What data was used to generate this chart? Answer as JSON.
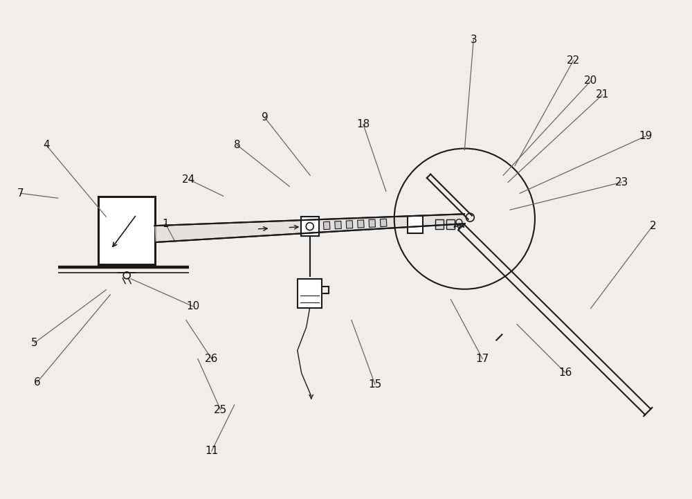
{
  "bg_color": "#f0eeec",
  "line_color": "#1a1a1a",
  "ann_color": "#666666",
  "label_color": "#111111",
  "fig_width": 10.0,
  "fig_height": 7.21,
  "dpi": 100,
  "annotations": [
    [
      "3",
      [
        6.85,
        6.65
      ],
      [
        6.72,
        5.05
      ]
    ],
    [
      "22",
      [
        8.3,
        6.35
      ],
      [
        7.45,
        4.82
      ]
    ],
    [
      "20",
      [
        8.55,
        6.05
      ],
      [
        7.28,
        4.68
      ]
    ],
    [
      "21",
      [
        8.72,
        5.85
      ],
      [
        7.35,
        4.58
      ]
    ],
    [
      "19",
      [
        9.35,
        5.25
      ],
      [
        7.52,
        4.42
      ]
    ],
    [
      "23",
      [
        9.0,
        4.58
      ],
      [
        7.38,
        4.18
      ]
    ],
    [
      "2",
      [
        9.45,
        3.95
      ],
      [
        8.55,
        2.75
      ]
    ],
    [
      "18",
      [
        5.25,
        5.42
      ],
      [
        5.58,
        4.45
      ]
    ],
    [
      "9",
      [
        3.82,
        5.52
      ],
      [
        4.48,
        4.68
      ]
    ],
    [
      "8",
      [
        3.42,
        5.12
      ],
      [
        4.18,
        4.52
      ]
    ],
    [
      "24",
      [
        2.72,
        4.62
      ],
      [
        3.22,
        4.38
      ]
    ],
    [
      "1",
      [
        2.38,
        3.98
      ],
      [
        2.52,
        3.72
      ]
    ],
    [
      "4",
      [
        0.65,
        5.12
      ],
      [
        1.52,
        4.08
      ]
    ],
    [
      "7",
      [
        0.28,
        4.42
      ],
      [
        0.82,
        4.35
      ]
    ],
    [
      "10",
      [
        2.78,
        2.78
      ],
      [
        1.88,
        3.18
      ]
    ],
    [
      "26",
      [
        3.05,
        2.02
      ],
      [
        2.68,
        2.58
      ]
    ],
    [
      "25",
      [
        3.18,
        1.28
      ],
      [
        2.85,
        2.02
      ]
    ],
    [
      "11",
      [
        3.05,
        0.68
      ],
      [
        3.38,
        1.35
      ]
    ],
    [
      "5",
      [
        0.48,
        2.25
      ],
      [
        1.52,
        3.02
      ]
    ],
    [
      "6",
      [
        0.52,
        1.68
      ],
      [
        1.58,
        2.95
      ]
    ],
    [
      "15",
      [
        5.42,
        1.65
      ],
      [
        5.08,
        2.58
      ]
    ],
    [
      "17",
      [
        6.98,
        2.02
      ],
      [
        6.52,
        2.88
      ]
    ],
    [
      "16",
      [
        8.18,
        1.82
      ],
      [
        7.48,
        2.52
      ]
    ]
  ]
}
